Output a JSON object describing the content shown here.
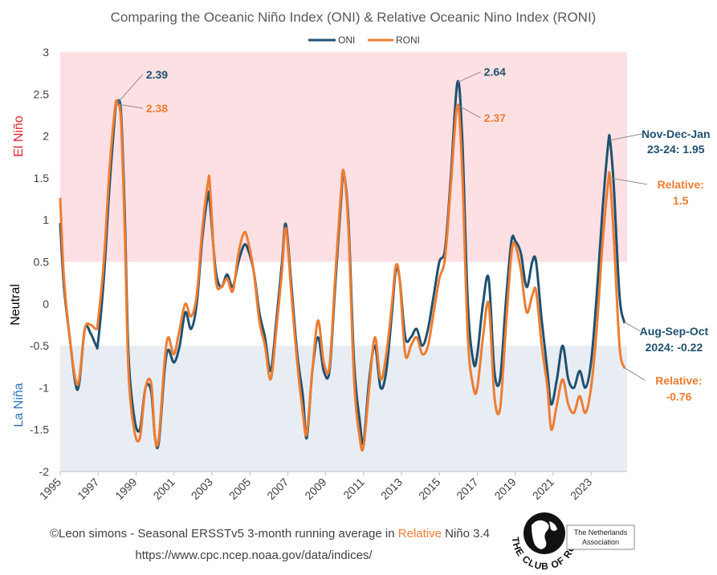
{
  "chart_data": {
    "type": "line",
    "title": "Comparing the Oceanic Niño Index (ONI) & Relative Oceanic Nino Index (RONI)",
    "legend": {
      "position": "top-center",
      "entries": [
        "ONI",
        "RONI"
      ]
    },
    "ylim": [
      -2,
      3
    ],
    "yticks": [
      "3",
      "2.5",
      "2",
      "1.5",
      "1",
      "0.5",
      "0",
      "-0.5",
      "-1",
      "-1.5",
      "-2"
    ],
    "ytick_values": [
      3,
      2.5,
      2,
      1.5,
      1,
      0.5,
      0,
      -0.5,
      -1,
      -1.5,
      -2
    ],
    "xlim": [
      1995,
      2024.9
    ],
    "xticks": [
      "1995",
      "1997",
      "1999",
      "2001",
      "2003",
      "2005",
      "2007",
      "2009",
      "2011",
      "2013",
      "2015",
      "2017",
      "2019",
      "2021",
      "2023"
    ],
    "xtick_values": [
      1995,
      1997,
      1999,
      2001,
      2003,
      2005,
      2007,
      2009,
      2011,
      2013,
      2015,
      2017,
      2019,
      2021,
      2023
    ],
    "zones": [
      {
        "label": "El Niño",
        "from": 0.5,
        "to": 3,
        "color": "#fde0e3",
        "label_color": "#e0242b"
      },
      {
        "label": "Neutral",
        "from": -0.5,
        "to": 0.5,
        "color": "#ffffff",
        "label_color": "#000000"
      },
      {
        "label": "La Niña",
        "from": -2,
        "to": -0.5,
        "color": "#e8edf3",
        "label_color": "#2e75b6"
      }
    ],
    "series": [
      {
        "name": "ONI",
        "color": "#1f5070",
        "x": [
          1995.0,
          1995.2,
          1995.5,
          1995.8,
          1996.0,
          1996.3,
          1996.6,
          1996.9,
          1997.0,
          1997.3,
          1997.6,
          1997.9,
          1998.0,
          1998.2,
          1998.4,
          1998.6,
          1998.9,
          1999.2,
          1999.5,
          1999.8,
          2000.0,
          2000.2,
          2000.5,
          2000.7,
          2001.0,
          2001.3,
          2001.6,
          2001.9,
          2002.2,
          2002.5,
          2002.8,
          2002.9,
          2003.2,
          2003.5,
          2003.8,
          2004.1,
          2004.4,
          2004.7,
          2004.9,
          2005.2,
          2005.5,
          2005.8,
          2006.1,
          2006.4,
          2006.7,
          2006.9,
          2007.2,
          2007.5,
          2007.8,
          2008.0,
          2008.3,
          2008.6,
          2008.9,
          2009.2,
          2009.5,
          2009.8,
          2009.95,
          2010.2,
          2010.5,
          2010.8,
          2011.0,
          2011.3,
          2011.6,
          2011.9,
          2012.2,
          2012.5,
          2012.7,
          2012.9,
          2013.2,
          2013.5,
          2013.8,
          2014.1,
          2014.4,
          2014.7,
          2015.0,
          2015.3,
          2015.6,
          2015.95,
          2016.2,
          2016.5,
          2016.8,
          2017.0,
          2017.3,
          2017.6,
          2017.9,
          2018.2,
          2018.5,
          2018.8,
          2019.0,
          2019.3,
          2019.6,
          2019.9,
          2020.1,
          2020.4,
          2020.7,
          2020.9,
          2021.2,
          2021.5,
          2021.8,
          2022.1,
          2022.4,
          2022.7,
          2023.0,
          2023.3,
          2023.6,
          2023.9,
          2024.0,
          2024.2,
          2024.5,
          2024.75
        ],
        "y": [
          0.95,
          0.2,
          -0.4,
          -0.95,
          -0.95,
          -0.3,
          -0.35,
          -0.5,
          -0.45,
          0.3,
          1.4,
          2.3,
          2.39,
          2.3,
          1.1,
          -0.6,
          -1.35,
          -1.5,
          -1.0,
          -1.05,
          -1.6,
          -1.65,
          -0.8,
          -0.55,
          -0.7,
          -0.5,
          -0.1,
          -0.3,
          0.0,
          0.8,
          1.3,
          1.2,
          0.4,
          0.2,
          0.35,
          0.2,
          0.5,
          0.7,
          0.65,
          0.4,
          -0.1,
          -0.4,
          -0.8,
          -0.2,
          0.5,
          0.95,
          0.2,
          -0.6,
          -1.1,
          -1.6,
          -0.8,
          -0.4,
          -0.8,
          -0.8,
          0.2,
          1.2,
          1.55,
          1.0,
          -0.7,
          -1.4,
          -1.65,
          -0.9,
          -0.5,
          -1.0,
          -0.8,
          -0.1,
          0.4,
          0.3,
          -0.4,
          -0.4,
          -0.3,
          -0.5,
          -0.3,
          0.1,
          0.5,
          0.65,
          1.5,
          2.64,
          2.0,
          0.0,
          -0.7,
          -0.6,
          0.0,
          0.3,
          -0.8,
          -0.9,
          0.0,
          0.75,
          0.75,
          0.6,
          0.2,
          0.5,
          0.5,
          -0.2,
          -0.8,
          -1.2,
          -0.9,
          -0.5,
          -0.9,
          -1.0,
          -0.8,
          -1.0,
          -0.7,
          0.1,
          1.1,
          1.9,
          1.95,
          1.4,
          0.1,
          -0.22
        ]
      },
      {
        "name": "RONI",
        "color": "#ed7d31",
        "x": [
          1995.0,
          1995.2,
          1995.5,
          1995.8,
          1996.0,
          1996.3,
          1996.6,
          1996.9,
          1997.0,
          1997.3,
          1997.6,
          1997.9,
          1998.0,
          1998.2,
          1998.4,
          1998.6,
          1998.9,
          1999.2,
          1999.5,
          1999.8,
          2000.0,
          2000.2,
          2000.5,
          2000.7,
          2001.0,
          2001.3,
          2001.6,
          2001.9,
          2002.2,
          2002.5,
          2002.8,
          2002.9,
          2003.2,
          2003.5,
          2003.8,
          2004.1,
          2004.4,
          2004.7,
          2004.9,
          2005.2,
          2005.5,
          2005.8,
          2006.1,
          2006.4,
          2006.7,
          2006.9,
          2007.2,
          2007.5,
          2007.8,
          2008.0,
          2008.3,
          2008.6,
          2008.9,
          2009.2,
          2009.5,
          2009.8,
          2009.95,
          2010.2,
          2010.5,
          2010.8,
          2011.0,
          2011.3,
          2011.6,
          2011.9,
          2012.2,
          2012.5,
          2012.7,
          2012.9,
          2013.2,
          2013.5,
          2013.8,
          2014.1,
          2014.4,
          2014.7,
          2015.0,
          2015.3,
          2015.6,
          2015.95,
          2016.2,
          2016.5,
          2016.8,
          2017.0,
          2017.3,
          2017.6,
          2017.9,
          2018.2,
          2018.5,
          2018.8,
          2019.0,
          2019.3,
          2019.6,
          2019.9,
          2020.1,
          2020.4,
          2020.7,
          2020.9,
          2021.2,
          2021.5,
          2021.8,
          2022.1,
          2022.4,
          2022.7,
          2023.0,
          2023.3,
          2023.6,
          2023.9,
          2024.0,
          2024.2,
          2024.5,
          2024.75
        ],
        "y": [
          1.25,
          0.3,
          -0.4,
          -0.9,
          -0.9,
          -0.3,
          -0.25,
          -0.3,
          -0.2,
          0.5,
          1.6,
          2.35,
          2.38,
          2.2,
          0.9,
          -0.8,
          -1.5,
          -1.6,
          -1.0,
          -0.95,
          -1.6,
          -1.6,
          -0.7,
          -0.4,
          -0.6,
          -0.3,
          0.0,
          -0.15,
          0.1,
          0.9,
          1.45,
          1.4,
          0.3,
          0.2,
          0.3,
          0.15,
          0.6,
          0.85,
          0.75,
          0.4,
          -0.2,
          -0.5,
          -0.9,
          -0.3,
          0.4,
          0.9,
          0.1,
          -0.7,
          -1.3,
          -1.55,
          -0.8,
          -0.2,
          -0.7,
          -0.75,
          0.3,
          1.3,
          1.58,
          0.9,
          -0.9,
          -1.6,
          -1.7,
          -1.0,
          -0.4,
          -0.9,
          -0.6,
          0.0,
          0.45,
          0.3,
          -0.6,
          -0.5,
          -0.4,
          -0.6,
          -0.5,
          -0.1,
          0.3,
          0.55,
          1.4,
          2.37,
          1.6,
          -0.4,
          -1.0,
          -1.0,
          -0.4,
          0.0,
          -1.1,
          -1.25,
          -0.3,
          0.6,
          0.7,
          0.4,
          -0.1,
          0.1,
          0.15,
          -0.5,
          -1.0,
          -1.5,
          -1.2,
          -0.9,
          -1.2,
          -1.3,
          -1.1,
          -1.3,
          -1.0,
          -0.3,
          0.7,
          1.45,
          1.5,
          0.8,
          -0.5,
          -0.76
        ]
      }
    ],
    "annotations": [
      {
        "text": "2.39",
        "series": "ONI",
        "x": 1998.0,
        "y": 2.39
      },
      {
        "text": "2.38",
        "series": "RONI",
        "x": 1998.0,
        "y": 2.38
      },
      {
        "text": "2.64",
        "series": "ONI",
        "x": 2015.95,
        "y": 2.64
      },
      {
        "text": "2.37",
        "series": "RONI",
        "x": 2015.95,
        "y": 2.37
      },
      {
        "text": "Nov-Dec-Jan",
        "series": "ONI",
        "x": 2024.0,
        "y": 1.95
      },
      {
        "text": "23-24: 1.95",
        "series": "ONI",
        "x": 2024.0,
        "y": 1.95
      },
      {
        "text": "Relative:",
        "series": "RONI",
        "x": 2024.0,
        "y": 1.5
      },
      {
        "text": "1.5",
        "series": "RONI",
        "x": 2024.0,
        "y": 1.5
      },
      {
        "text": "Aug-Sep-Oct",
        "series": "ONI",
        "x": 2024.75,
        "y": -0.22
      },
      {
        "text": "2024: -0.22",
        "series": "ONI",
        "x": 2024.75,
        "y": -0.22
      },
      {
        "text": "Relative:",
        "series": "RONI",
        "x": 2024.75,
        "y": -0.76
      },
      {
        "text": "-0.76",
        "series": "RONI",
        "x": 2024.75,
        "y": -0.76
      }
    ]
  },
  "footer": {
    "credit_prefix": "©Leon simons - Seasonal ERSSTv5 3-month running average in ",
    "credit_highlight": "Relative",
    "credit_suffix": " Niño 3.4",
    "url": "https://www.cpc.ncep.noaa.gov/data/indices/"
  },
  "logo": {
    "ring_text": "THE CLUB OF ROME",
    "tag_line1": "The Netherlands",
    "tag_line2": "Association"
  },
  "colors": {
    "oni": "#1f5070",
    "roni": "#ed7d31",
    "el_nino_fill": "#fde0e3",
    "la_nina_fill": "#e8edf3",
    "relative_highlight": "#ed7d31"
  }
}
